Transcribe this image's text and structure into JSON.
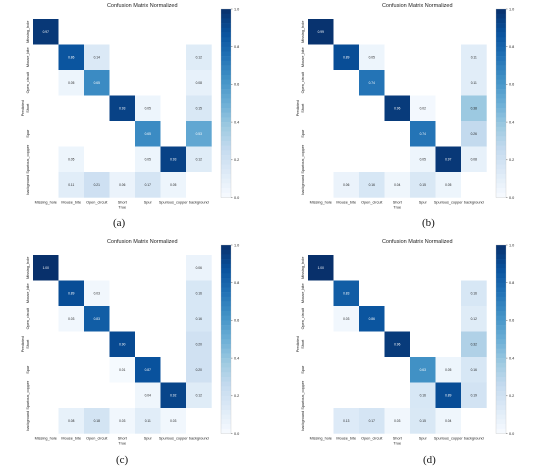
{
  "colors": {
    "low": "#f7fbff",
    "high": "#08306b"
  },
  "chart_data": [
    {
      "type": "heatmap",
      "title": "Confusion Matrix Normalized",
      "panel_label": "(a)",
      "xlabel": "True",
      "ylabel": "Predicted",
      "x_labels": [
        "Missing_hole",
        "Mouse_bite",
        "Open_circuit",
        "Short",
        "Spur",
        "Spurious_copper",
        "background"
      ],
      "y_labels": [
        "Missing_hole",
        "Mouse_bite",
        "Open_circuit",
        "Short",
        "Spur",
        "Spurious_copper",
        "background"
      ],
      "matrix": [
        [
          0.97,
          null,
          null,
          null,
          null,
          null,
          null
        ],
        [
          null,
          0.86,
          0.14,
          null,
          null,
          null,
          0.12
        ],
        [
          null,
          0.05,
          0.65,
          null,
          null,
          null,
          0.08
        ],
        [
          null,
          null,
          null,
          0.93,
          0.05,
          null,
          0.15
        ],
        [
          null,
          null,
          null,
          null,
          0.65,
          null,
          0.53
        ],
        [
          null,
          0.05,
          null,
          null,
          0.05,
          0.93,
          0.12
        ],
        [
          null,
          0.11,
          0.21,
          0.06,
          0.17,
          0.05,
          null
        ]
      ],
      "colorbar": {
        "ticks": [
          "0.0",
          "0.2",
          "0.4",
          "0.6",
          "0.8",
          "1.0"
        ],
        "range": [
          0,
          1
        ]
      }
    },
    {
      "type": "heatmap",
      "title": "Confusion Matrix Normalized",
      "panel_label": "(b)",
      "xlabel": "True",
      "ylabel": "Predicted",
      "x_labels": [
        "Missing_hole",
        "Mouse_bite",
        "Open_circuit",
        "Short",
        "Spur",
        "Spurious_copper",
        "background"
      ],
      "y_labels": [
        "Missing_hole",
        "Mouse_bite",
        "Open_circuit",
        "Short",
        "Spur",
        "Spurious_copper",
        "background"
      ],
      "matrix": [
        [
          0.99,
          null,
          null,
          null,
          null,
          null,
          null
        ],
        [
          null,
          0.89,
          0.05,
          null,
          null,
          null,
          0.11
        ],
        [
          null,
          null,
          0.74,
          null,
          null,
          null,
          0.11
        ],
        [
          null,
          null,
          null,
          0.96,
          0.02,
          null,
          0.38
        ],
        [
          null,
          null,
          null,
          null,
          0.74,
          null,
          0.26
        ],
        [
          null,
          null,
          null,
          null,
          0.05,
          0.97,
          0.08
        ],
        [
          null,
          0.06,
          0.16,
          0.04,
          0.15,
          0.05,
          null
        ]
      ],
      "colorbar": {
        "ticks": [
          "0.0",
          "0.2",
          "0.4",
          "0.6",
          "0.8",
          "1.0"
        ],
        "range": [
          0,
          1
        ]
      }
    },
    {
      "type": "heatmap",
      "title": "Confusion Matrix Normalized",
      "panel_label": "(c)",
      "xlabel": "True",
      "ylabel": "Predicted",
      "x_labels": [
        "Missing_hole",
        "Mouse_bite",
        "Open_circuit",
        "Short",
        "Spur",
        "Spurious_copper",
        "background"
      ],
      "y_labels": [
        "Missing_hole",
        "Mouse_bite",
        "Open_circuit",
        "Short",
        "Spur",
        "Spurious_copper",
        "background"
      ],
      "matrix": [
        [
          1.0,
          null,
          null,
          null,
          null,
          null,
          0.06
        ],
        [
          null,
          0.89,
          0.03,
          null,
          null,
          null,
          0.16
        ],
        [
          null,
          0.03,
          0.83,
          null,
          null,
          null,
          0.16
        ],
        [
          null,
          null,
          null,
          0.9,
          null,
          null,
          0.2
        ],
        [
          null,
          null,
          null,
          0.01,
          0.87,
          null,
          0.2
        ],
        [
          null,
          null,
          null,
          null,
          0.04,
          0.92,
          0.12
        ],
        [
          null,
          0.08,
          0.18,
          0.03,
          0.11,
          0.03,
          null
        ]
      ],
      "colorbar": {
        "ticks": [
          "0.0",
          "0.2",
          "0.4",
          "0.6",
          "0.8",
          "1.0"
        ],
        "range": [
          0,
          1
        ]
      }
    },
    {
      "type": "heatmap",
      "title": "Confusion Matrix Normalized",
      "panel_label": "(d)",
      "xlabel": "True",
      "ylabel": "Predicted",
      "x_labels": [
        "Missing_hole",
        "Mouse_bite",
        "Open_circuit",
        "Short",
        "Spur",
        "Spurious_copper",
        "background"
      ],
      "y_labels": [
        "Missing_hole",
        "Mouse_bite",
        "Open_circuit",
        "Short",
        "Spur",
        "Spurious_copper",
        "background"
      ],
      "matrix": [
        [
          1.0,
          null,
          null,
          null,
          null,
          null,
          null
        ],
        [
          null,
          0.83,
          null,
          null,
          null,
          null,
          0.16
        ],
        [
          null,
          0.03,
          0.86,
          null,
          null,
          null,
          0.12
        ],
        [
          null,
          null,
          null,
          0.96,
          null,
          null,
          0.32
        ],
        [
          null,
          null,
          null,
          null,
          0.63,
          0.05,
          0.16
        ],
        [
          null,
          null,
          null,
          null,
          0.16,
          0.89,
          0.19
        ],
        [
          null,
          0.13,
          0.17,
          0.03,
          0.15,
          0.04,
          null
        ]
      ],
      "colorbar": {
        "ticks": [
          "0.0",
          "0.2",
          "0.4",
          "0.6",
          "0.8",
          "1.0"
        ],
        "range": [
          0,
          1
        ]
      }
    }
  ]
}
